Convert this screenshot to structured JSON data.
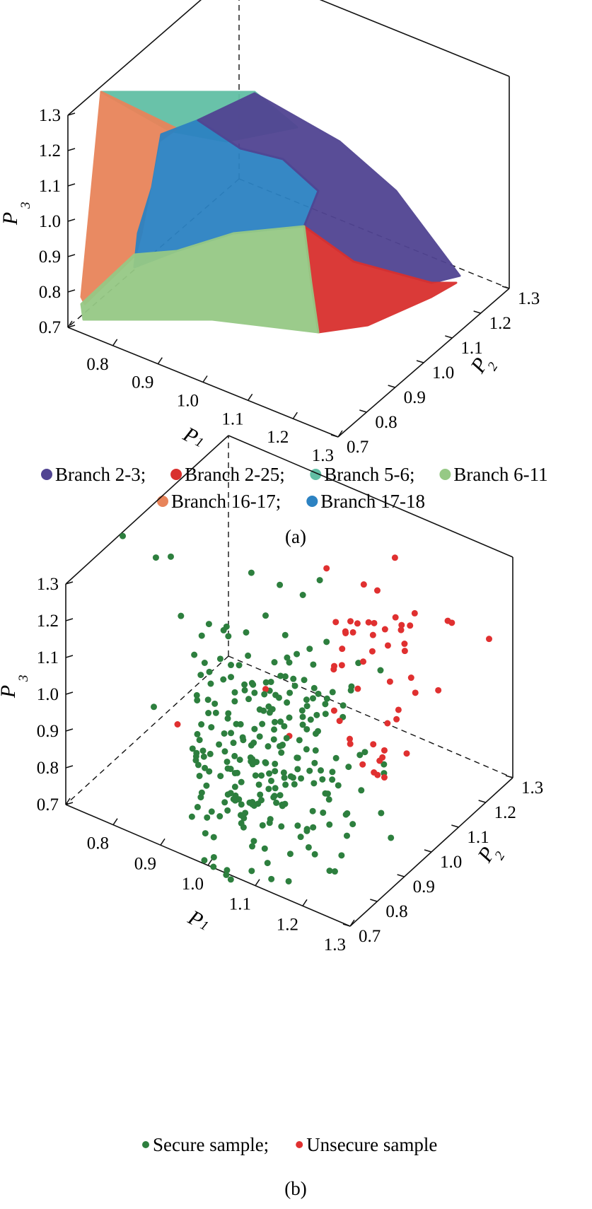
{
  "chart_data": [
    {
      "type": "scatter3d",
      "axes": {
        "x": {
          "label": "P",
          "sub": "1",
          "range": [
            0.7,
            1.3
          ],
          "ticks": [
            "0.7",
            "0.8",
            "0.9",
            "1.0",
            "1.1",
            "1.2",
            "1.3"
          ]
        },
        "y": {
          "label": "P",
          "sub": "2",
          "range": [
            0.7,
            1.3
          ],
          "ticks": [
            "0.7",
            "0.8",
            "0.9",
            "1.0",
            "1.1",
            "1.2",
            "1.3"
          ]
        },
        "z": {
          "label": "P",
          "sub": "3",
          "range": [
            0.7,
            1.3
          ],
          "ticks": [
            "0.7",
            "0.8",
            "0.9",
            "1.0",
            "1.1",
            "1.2",
            "1.3"
          ]
        }
      },
      "legend": [
        {
          "text": "Branch 2-3;",
          "color": "#514492"
        },
        {
          "text": "Branch 2-25;",
          "color": "#d9302e"
        },
        {
          "text": "Branch 5-6;",
          "color": "#62bfa5"
        },
        {
          "text": "Branch 6-11",
          "color": "#96c985"
        },
        {
          "text": "Branch 16-17;",
          "color": "#e8845a"
        },
        {
          "text": "Branch 17-18",
          "color": "#2c82c2"
        }
      ],
      "caption": "(a)",
      "regions": [
        {
          "series": "Branch 5-6",
          "color": "#62bfa5",
          "approx_boundary": [
            [
              0.72,
              0.78,
              1.3
            ],
            [
              0.74,
              1.05,
              1.3
            ],
            [
              0.9,
              1.05,
              1.25
            ],
            [
              0.95,
              0.9,
              1.22
            ]
          ]
        },
        {
          "series": "Branch 16-17",
          "color": "#e8845a",
          "approx_boundary": [
            [
              0.72,
              0.78,
              1.3
            ],
            [
              0.92,
              0.9,
              1.22
            ],
            [
              0.85,
              0.78,
              0.95
            ],
            [
              0.72,
              0.72,
              0.8
            ]
          ]
        },
        {
          "series": "Branch 17-18",
          "color": "#2c82c2",
          "approx_boundary": [
            [
              0.9,
              0.95,
              1.22
            ],
            [
              1.05,
              1.05,
              1.15
            ],
            [
              1.02,
              0.92,
              1.0
            ],
            [
              0.85,
              0.8,
              0.88
            ]
          ]
        },
        {
          "series": "Branch 2-3",
          "color": "#514492",
          "approx_boundary": [
            [
              0.9,
              1.05,
              1.25
            ],
            [
              1.3,
              1.3,
              0.78
            ],
            [
              1.15,
              1.2,
              0.78
            ],
            [
              1.0,
              1.05,
              1.15
            ]
          ]
        },
        {
          "series": "Branch 2-25",
          "color": "#d9302e",
          "approx_boundary": [
            [
              1.05,
              1.05,
              1.0
            ],
            [
              1.3,
              1.3,
              0.78
            ],
            [
              1.25,
              1.28,
              0.7
            ],
            [
              1.1,
              1.0,
              0.72
            ]
          ]
        },
        {
          "series": "Branch 6-11",
          "color": "#96c985",
          "approx_boundary": [
            [
              0.72,
              0.72,
              0.78
            ],
            [
              0.85,
              0.8,
              0.9
            ],
            [
              1.05,
              1.0,
              1.0
            ],
            [
              1.1,
              1.0,
              0.72
            ],
            [
              0.76,
              0.7,
              0.72
            ]
          ]
        }
      ]
    },
    {
      "type": "scatter3d",
      "axes": {
        "x": {
          "label": "P",
          "sub": "1",
          "range": [
            0.7,
            1.3
          ],
          "ticks": [
            "0.7",
            "0.8",
            "0.9",
            "1.0",
            "1.1",
            "1.2",
            "1.3"
          ]
        },
        "y": {
          "label": "P",
          "sub": "2",
          "range": [
            0.7,
            1.3
          ],
          "ticks": [
            "0.7",
            "0.8",
            "0.9",
            "1.0",
            "1.1",
            "1.2",
            "1.3"
          ]
        },
        "z": {
          "label": "P",
          "sub": "3",
          "range": [
            0.7,
            1.3
          ],
          "ticks": [
            "0.7",
            "0.8",
            "0.9",
            "1.0",
            "1.1",
            "1.2",
            "1.3"
          ]
        }
      },
      "legend": [
        {
          "text": "Secure sample;",
          "color": "#2d7f3e"
        },
        {
          "text": "Unsecure sample",
          "color": "#e03030"
        }
      ],
      "caption": "(b)",
      "series": [
        {
          "name": "Secure sample",
          "color": "#2d7f3e",
          "points": [
            [
              0.66,
              0.98,
              1.22
            ],
            [
              0.73,
              0.98,
              1.2
            ],
            [
              0.75,
              1.0,
              1.2
            ],
            [
              0.8,
              0.95,
              1.1
            ],
            [
              0.85,
              0.95,
              1.0
            ],
            [
              0.8,
              0.85,
              0.92
            ],
            [
              0.9,
              0.95,
              1.1
            ],
            [
              0.9,
              0.9,
              0.95
            ],
            [
              0.92,
              0.9,
              0.88
            ],
            [
              0.95,
              1.0,
              1.15
            ],
            [
              0.95,
              0.95,
              1.0
            ],
            [
              0.98,
              1.02,
              1.1
            ],
            [
              1.0,
              1.0,
              1.05
            ],
            [
              1.0,
              1.05,
              1.2
            ],
            [
              1.0,
              0.9,
              0.95
            ],
            [
              1.02,
              1.02,
              1.0
            ],
            [
              1.05,
              1.05,
              1.1
            ],
            [
              1.05,
              0.95,
              0.9
            ],
            [
              0.97,
              0.98,
              0.97
            ],
            [
              1.02,
              0.98,
              1.03
            ],
            [
              0.98,
              1.0,
              1.25
            ],
            [
              1.03,
              1.06,
              1.25
            ],
            [
              0.92,
              1.0,
              1.25
            ],
            [
              1.08,
              1.02,
              1.0
            ],
            [
              1.1,
              1.08,
              1.05
            ],
            [
              0.88,
              0.92,
              0.98
            ],
            [
              0.93,
              0.97,
              1.05
            ],
            [
              1.0,
              1.0,
              0.9
            ],
            [
              1.05,
              1.0,
              0.98
            ],
            [
              0.9,
              0.88,
              1.05
            ]
          ]
        },
        {
          "name": "Unsecure sample",
          "color": "#e03030",
          "points": [
            [
              1.05,
              1.05,
              1.3
            ],
            [
              1.1,
              1.1,
              1.25
            ],
            [
              1.1,
              1.15,
              1.2
            ],
            [
              1.15,
              1.15,
              1.12
            ],
            [
              1.2,
              1.25,
              1.1
            ],
            [
              1.25,
              1.3,
              1.05
            ],
            [
              1.2,
              1.2,
              0.95
            ],
            [
              1.15,
              1.1,
              0.9
            ],
            [
              1.1,
              1.05,
              0.85
            ],
            [
              0.95,
              1.0,
              0.95
            ],
            [
              0.85,
              0.85,
              0.9
            ],
            [
              1.0,
              1.0,
              0.85
            ],
            [
              1.15,
              1.05,
              0.8
            ],
            [
              1.12,
              1.18,
              1.28
            ],
            [
              1.22,
              1.2,
              1.15
            ]
          ]
        }
      ]
    }
  ]
}
